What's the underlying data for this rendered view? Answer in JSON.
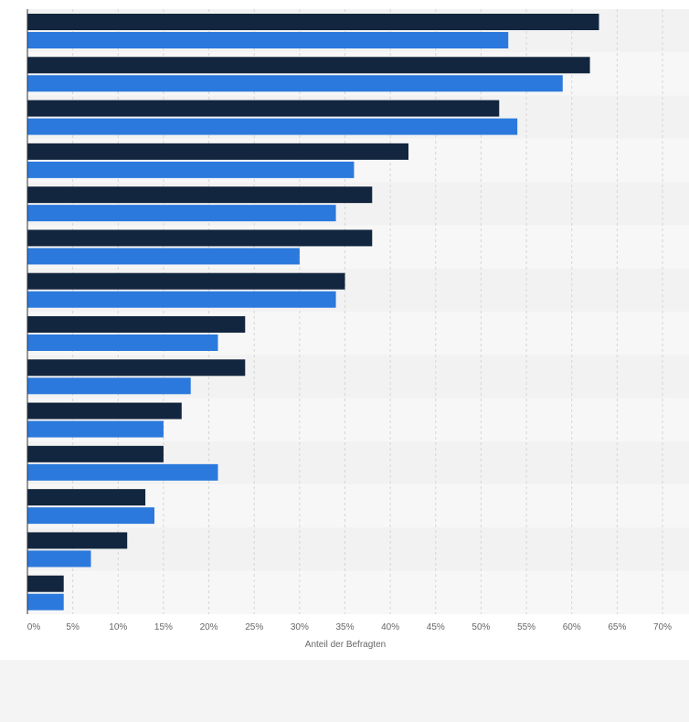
{
  "chart_data": {
    "type": "bar",
    "orientation": "horizontal",
    "xlabel": "Anteil der Befragten",
    "xlim": [
      0,
      70
    ],
    "x_ticks": [
      "0%",
      "5%",
      "10%",
      "15%",
      "20%",
      "25%",
      "30%",
      "35%",
      "40%",
      "45%",
      "50%",
      "55%",
      "60%",
      "65%",
      "70%"
    ],
    "grid": true,
    "colors": [
      "#13263f",
      "#2b79dc"
    ],
    "series": [
      {
        "values": [
          63,
          62,
          52,
          42,
          38,
          38,
          35,
          24,
          24,
          17,
          15,
          13,
          11,
          4
        ]
      },
      {
        "values": [
          53,
          59,
          54,
          36,
          34,
          30,
          34,
          21,
          18,
          15,
          21,
          14,
          7,
          4
        ]
      }
    ]
  }
}
